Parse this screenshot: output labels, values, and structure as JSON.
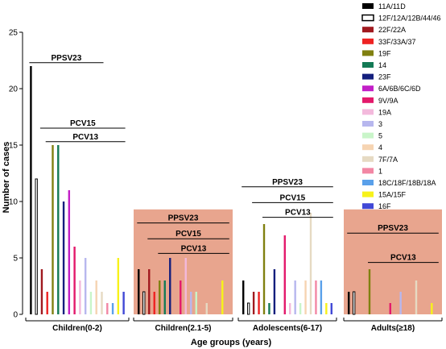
{
  "chart_data": {
    "type": "bar",
    "xlabel": "Age groups (years)",
    "ylabel": "Number of cases",
    "ylim": [
      0,
      25
    ],
    "yticks": [
      0,
      5,
      10,
      15,
      20,
      25
    ],
    "grid": false,
    "legend_position": "right",
    "categories": [
      "Children(0-2)",
      "Children(2.1-5)",
      "Adolescents(6-17)",
      "Adults(≥18)"
    ],
    "highlighted_groups": [
      "Children(2.1-5)",
      "Adults(≥18)"
    ],
    "highlight_color": "#e8a58e",
    "series": [
      {
        "name": "11A/11D",
        "color": "#000000",
        "values": [
          22,
          4,
          3,
          2
        ]
      },
      {
        "name": "12F/12A/12B/44/46",
        "color": "#ffffff",
        "values": [
          12,
          2,
          1,
          2
        ]
      },
      {
        "name": "22F/22A",
        "color": "#a0191f",
        "values": [
          4,
          4,
          2,
          0
        ]
      },
      {
        "name": "33F/33A/37",
        "color": "#ee2222",
        "values": [
          2,
          2,
          2,
          0
        ]
      },
      {
        "name": "19F",
        "color": "#808010",
        "values": [
          15,
          3,
          8,
          4
        ]
      },
      {
        "name": "14",
        "color": "#137a55",
        "values": [
          15,
          3,
          1,
          0
        ]
      },
      {
        "name": "23F",
        "color": "#141f7d",
        "values": [
          10,
          5,
          4,
          0
        ]
      },
      {
        "name": "6A/6B/6C/6D",
        "color": "#c21fc7",
        "values": [
          11,
          0,
          0,
          0
        ]
      },
      {
        "name": "9V/9A",
        "color": "#e3196b",
        "values": [
          6,
          3,
          7,
          1
        ]
      },
      {
        "name": "19A",
        "color": "#f3b9dc",
        "values": [
          3,
          5,
          1,
          0
        ]
      },
      {
        "name": "3",
        "color": "#b7b7ee",
        "values": [
          5,
          2,
          3,
          2
        ]
      },
      {
        "name": "5",
        "color": "#c9f5c9",
        "values": [
          2,
          2,
          1,
          0
        ]
      },
      {
        "name": "4",
        "color": "#f6d4b2",
        "values": [
          3,
          0,
          3,
          0
        ]
      },
      {
        "name": "7F/7A",
        "color": "#e6dac3",
        "values": [
          2,
          1,
          9,
          3
        ]
      },
      {
        "name": "1",
        "color": "#f287a4",
        "values": [
          1,
          0,
          3,
          0
        ]
      },
      {
        "name": "18C/18F/18B/18A",
        "color": "#5aa0ea",
        "values": [
          1,
          0,
          3,
          0
        ]
      },
      {
        "name": "15A/15F",
        "color": "#f7f21a",
        "values": [
          5,
          3,
          1,
          1
        ]
      },
      {
        "name": "16F",
        "color": "#4148d6",
        "values": [
          2,
          0,
          1,
          0
        ]
      }
    ],
    "annotations": [
      {
        "label": "PPSV23",
        "group": 0,
        "from_series": 0,
        "to_series": 13,
        "y": 22.3
      },
      {
        "label": "PCV15",
        "group": 0,
        "from_series": 2,
        "to_series": 17,
        "y": 16.5
      },
      {
        "label": "PCV13",
        "group": 0,
        "from_series": 3,
        "to_series": 17,
        "y": 15.3
      },
      {
        "label": "PPSV23",
        "group": 1,
        "from_series": 0,
        "to_series": 17,
        "y": 8.1
      },
      {
        "label": "PCV15",
        "group": 1,
        "from_series": 2,
        "to_series": 17,
        "y": 6.7
      },
      {
        "label": "PCV13",
        "group": 1,
        "from_series": 4,
        "to_series": 17,
        "y": 5.4
      },
      {
        "label": "PPSV23",
        "group": 2,
        "from_series": 0,
        "to_series": 17,
        "y": 11.3
      },
      {
        "label": "PCV15",
        "group": 2,
        "from_series": 2,
        "to_series": 17,
        "y": 9.9
      },
      {
        "label": "PCV13",
        "group": 2,
        "from_series": 4,
        "to_series": 17,
        "y": 8.6
      },
      {
        "label": "PPSV23",
        "group": 3,
        "from_series": 0,
        "to_series": 17,
        "y": 7.2
      },
      {
        "label": "PCV13",
        "group": 3,
        "from_series": 4,
        "to_series": 17,
        "y": 4.6
      }
    ]
  }
}
